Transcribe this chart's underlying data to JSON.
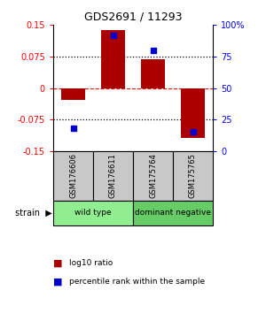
{
  "title": "GDS2691 / 11293",
  "samples": [
    "GSM176606",
    "GSM176611",
    "GSM175764",
    "GSM175765"
  ],
  "log10_ratio": [
    -0.028,
    0.138,
    0.068,
    -0.118
  ],
  "percentile_rank": [
    18,
    92,
    80,
    15
  ],
  "group_colors": [
    "#90EE90",
    "#66CC66"
  ],
  "group_ranges": [
    [
      0,
      1
    ],
    [
      2,
      3
    ]
  ],
  "group_labels": [
    "wild type",
    "dominant negative"
  ],
  "group_label": "strain",
  "ylim": [
    -0.15,
    0.15
  ],
  "yticks_left": [
    -0.15,
    -0.075,
    0,
    0.075,
    0.15
  ],
  "yticks_left_labels": [
    "-0.15",
    "-0.075",
    "0",
    "0.075",
    "0.15"
  ],
  "yticks_right": [
    0,
    25,
    50,
    75,
    100
  ],
  "bar_color": "#AA0000",
  "dot_color": "#0000CC",
  "background_color": "#ffffff",
  "legend_items": [
    "log10 ratio",
    "percentile rank within the sample"
  ],
  "bar_width": 0.6,
  "sample_box_color": "#C8C8C8"
}
